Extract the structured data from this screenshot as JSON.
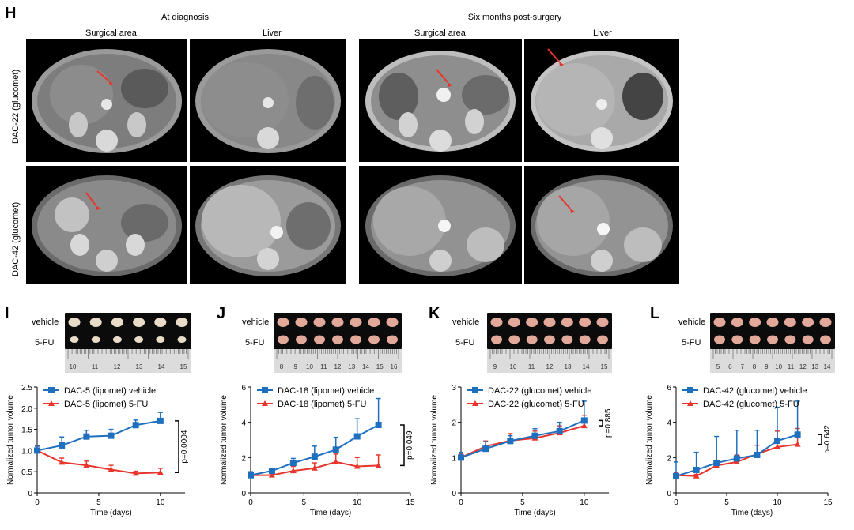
{
  "panel_h": {
    "letter": "H",
    "group_left": "At diagnosis",
    "group_right": "Six months post-surgery",
    "col_labels": [
      "Surgical area",
      "Liver",
      "Surgical area",
      "Liver"
    ],
    "row_labels": [
      "DAC-22 (glucomet)",
      "DAC-42 (glucomet)"
    ]
  },
  "panels": [
    {
      "letter": "I",
      "photo_labels": [
        "vehicle",
        "5-FU"
      ],
      "ruler_ticks": [
        "10",
        "11",
        "12",
        "13",
        "14",
        "15"
      ],
      "p_label": "p=0.0004",
      "chart_data": {
        "type": "line",
        "xlabel": "Time (days)",
        "ylabel": "Normalized tumor volume",
        "xlim": [
          0,
          12
        ],
        "xticks": [
          0,
          5,
          10
        ],
        "ylim": [
          0,
          2.5
        ],
        "yticks": [
          0,
          0.5,
          1.0,
          1.5,
          2.0,
          2.5
        ],
        "ytick_labels": [
          "0",
          "0.5",
          "1.0",
          "1.5",
          "2.0",
          "2.5"
        ],
        "series": [
          {
            "name": "DAC-5 (lipomet) vehicle",
            "color": "#1f6fbf",
            "marker": "square",
            "x": [
              0,
              2,
              4,
              6,
              8,
              10
            ],
            "y": [
              1.0,
              1.12,
              1.33,
              1.35,
              1.6,
              1.7
            ],
            "err": [
              0.1,
              0.2,
              0.15,
              0.15,
              0.12,
              0.2
            ]
          },
          {
            "name": "DAC-5 (lipomet)  5-FU",
            "color": "#e8352b",
            "marker": "triangle",
            "x": [
              0,
              2,
              4,
              6,
              8,
              10
            ],
            "y": [
              1.0,
              0.72,
              0.65,
              0.55,
              0.46,
              0.48
            ],
            "err": [
              0.12,
              0.1,
              0.1,
              0.1,
              0.05,
              0.1
            ]
          }
        ]
      }
    },
    {
      "letter": "J",
      "photo_labels": [
        "vehicle",
        "5-FU"
      ],
      "ruler_ticks": [
        "8",
        "9",
        "10",
        "11",
        "12",
        "13",
        "14",
        "15",
        "16"
      ],
      "p_label": "p=0.049",
      "chart_data": {
        "type": "line",
        "xlabel": "Time (days)",
        "ylabel": "Normalized tumor volume",
        "xlim": [
          0,
          15
        ],
        "xticks": [
          0,
          5,
          10,
          15
        ],
        "ylim": [
          0,
          6
        ],
        "yticks": [
          0,
          2,
          4,
          6
        ],
        "ytick_labels": [
          "0",
          "2",
          "4",
          "6"
        ],
        "series": [
          {
            "name": "DAC-18 (lipomet) vehicle",
            "color": "#1f6fbf",
            "marker": "square",
            "x": [
              0,
              2,
              4,
              6,
              8,
              10,
              12
            ],
            "y": [
              1.0,
              1.25,
              1.7,
              2.05,
              2.45,
              3.2,
              3.85
            ],
            "err": [
              0.2,
              0.15,
              0.25,
              0.6,
              0.7,
              1.0,
              1.5
            ]
          },
          {
            "name": "DAC-18 (lipomet) 5-FU",
            "color": "#e8352b",
            "marker": "triangle",
            "x": [
              0,
              2,
              4,
              6,
              8,
              10,
              12
            ],
            "y": [
              1.0,
              1.0,
              1.25,
              1.4,
              1.75,
              1.5,
              1.55
            ],
            "err": [
              0.1,
              0.1,
              0.25,
              0.3,
              0.45,
              0.5,
              0.6
            ]
          }
        ]
      }
    },
    {
      "letter": "K",
      "photo_labels": [
        "vehicle",
        "5-FU"
      ],
      "ruler_ticks": [
        "9",
        "10",
        "11",
        "12",
        "13",
        "14",
        "15"
      ],
      "p_label": "p=0.885",
      "chart_data": {
        "type": "line",
        "xlabel": "Time (days)",
        "ylabel": "Normalized tumor volume",
        "xlim": [
          0,
          12
        ],
        "xticks": [
          0,
          5,
          10
        ],
        "ylim": [
          0,
          3
        ],
        "yticks": [
          0,
          1,
          2,
          3
        ],
        "ytick_labels": [
          "0",
          "1",
          "2",
          "3"
        ],
        "series": [
          {
            "name": "DAC-22 (glucomet) vehicle",
            "color": "#1f6fbf",
            "marker": "square",
            "x": [
              0,
              2,
              4,
              6,
              8,
              10
            ],
            "y": [
              1.0,
              1.25,
              1.47,
              1.62,
              1.75,
              2.05
            ],
            "err": [
              0.15,
              0.2,
              0.15,
              0.2,
              0.25,
              0.55
            ]
          },
          {
            "name": "DAC-22 (glucomet) 5-FU",
            "color": "#e8352b",
            "marker": "triangle",
            "x": [
              0,
              2,
              4,
              6,
              8,
              10
            ],
            "y": [
              1.0,
              1.32,
              1.48,
              1.55,
              1.7,
              1.9
            ],
            "err": [
              0.1,
              0.15,
              0.2,
              0.2,
              0.2,
              0.3
            ]
          }
        ]
      }
    },
    {
      "letter": "L",
      "photo_labels": [
        "vehicle",
        "5-FU"
      ],
      "ruler_ticks": [
        "5",
        "6",
        "7",
        "8",
        "9",
        "10",
        "11",
        "12",
        "13",
        "14"
      ],
      "p_label": "p=0.642",
      "chart_data": {
        "type": "line",
        "xlabel": "Time (days)",
        "ylabel": "Normalized tumor volume",
        "xlim": [
          0,
          15
        ],
        "xticks": [
          0,
          5,
          10,
          15
        ],
        "ylim": [
          0,
          6
        ],
        "yticks": [
          0,
          2,
          4,
          6
        ],
        "ytick_labels": [
          "0",
          "2",
          "4",
          "6"
        ],
        "series": [
          {
            "name": "DAC-42 (glucomet) vehicle",
            "color": "#1f6fbf",
            "marker": "square",
            "x": [
              0,
              2,
              4,
              6,
              8,
              10,
              12
            ],
            "y": [
              0.95,
              1.3,
              1.7,
              1.95,
              2.15,
              2.95,
              3.3
            ],
            "err": [
              0.8,
              1.0,
              1.5,
              1.6,
              1.4,
              1.9,
              1.9
            ]
          },
          {
            "name": "DAC-42 (glucomet) 5-FU",
            "color": "#e8352b",
            "marker": "triangle",
            "x": [
              0,
              2,
              4,
              6,
              8,
              10,
              12
            ],
            "y": [
              1.0,
              0.95,
              1.55,
              1.75,
              2.2,
              2.6,
              2.75
            ],
            "err": [
              0.15,
              0.1,
              0.3,
              0.4,
              0.5,
              0.9,
              0.9
            ]
          }
        ]
      }
    }
  ]
}
